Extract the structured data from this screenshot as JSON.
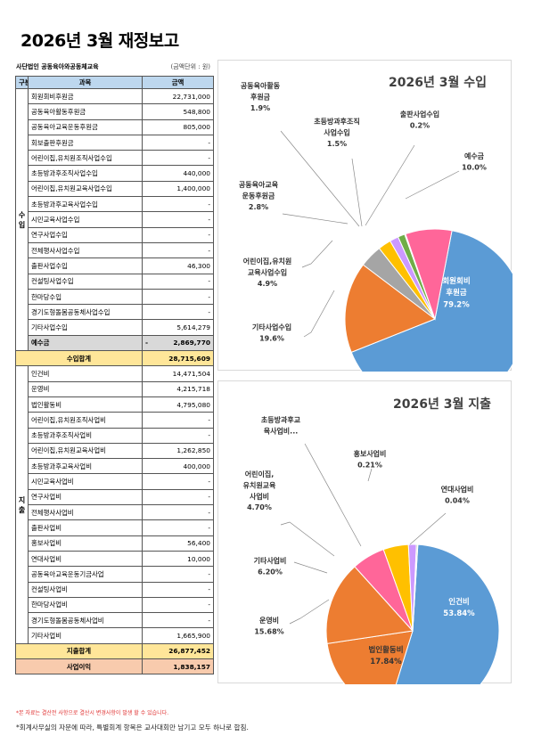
{
  "title": "2026년 3월 재정보고",
  "org": "사단법인 공동육아와공동체교육",
  "unit": "(금액단위 : 원)",
  "table": {
    "headers": [
      "구분",
      "과목",
      "금액"
    ],
    "income_label": "수입",
    "expense_label": "지출",
    "income_rows": [
      {
        "name": "회원회비후원금",
        "amount": "22,731,000"
      },
      {
        "name": "공동육아활동후원금",
        "amount": "548,800"
      },
      {
        "name": "공동육아교육운동후원금",
        "amount": "805,000"
      },
      {
        "name": "회보출판후원금",
        "amount": "-"
      },
      {
        "name": "어린이집,유치원조직사업수입",
        "amount": "-"
      },
      {
        "name": "초등방과후조직사업수입",
        "amount": "440,000"
      },
      {
        "name": "어린이집,유치원교육사업수입",
        "amount": "1,400,000"
      },
      {
        "name": "초등방과후교육사업수입",
        "amount": "-"
      },
      {
        "name": "시민교육사업수입",
        "amount": "-"
      },
      {
        "name": "연구사업수입",
        "amount": "-"
      },
      {
        "name": "전체행사사업수입",
        "amount": "-"
      },
      {
        "name": "출판사업수입",
        "amount": "46,300"
      },
      {
        "name": "컨설팅사업수입",
        "amount": "-"
      },
      {
        "name": "한마당수입",
        "amount": "-"
      },
      {
        "name": "경기도형돌봄공동체사업수입",
        "amount": "-"
      },
      {
        "name": "기타사업수입",
        "amount": "5,614,279"
      }
    ],
    "reserve": {
      "name": "예수금",
      "sign": "-",
      "amount": "2,869,770"
    },
    "income_total": {
      "name": "수입합계",
      "amount": "28,715,609"
    },
    "expense_rows": [
      {
        "name": "인건비",
        "amount": "14,471,504"
      },
      {
        "name": "운영비",
        "amount": "4,215,718"
      },
      {
        "name": "법인활동비",
        "amount": "4,795,080"
      },
      {
        "name": "어린이집,유치원조직사업비",
        "amount": "-"
      },
      {
        "name": "초등방과후조직사업비",
        "amount": "-"
      },
      {
        "name": "어린이집,유치원교육사업비",
        "amount": "1,262,850"
      },
      {
        "name": "초등방과후교육사업비",
        "amount": "400,000"
      },
      {
        "name": "시민교육사업비",
        "amount": "-"
      },
      {
        "name": "연구사업비",
        "amount": "-"
      },
      {
        "name": "전체행사사업비",
        "amount": "-"
      },
      {
        "name": "출판사업비",
        "amount": "-"
      },
      {
        "name": "홍보사업비",
        "amount": "56,400"
      },
      {
        "name": "연대사업비",
        "amount": "10,000"
      },
      {
        "name": "공동육아교육운동기금사업",
        "amount": "-"
      },
      {
        "name": "컨설팅사업비",
        "amount": "-"
      },
      {
        "name": "한마당사업비",
        "amount": "-"
      },
      {
        "name": "경기도형돌봄공동체사업비",
        "amount": "-"
      },
      {
        "name": "기타사업비",
        "amount": "1,665,900"
      }
    ],
    "expense_total": {
      "name": "지출합계",
      "amount": "26,877,452"
    },
    "profit": {
      "name": "사업이익",
      "amount": "1,838,157"
    }
  },
  "chart_data": [
    {
      "type": "pie",
      "title": "2026년 3월 수입",
      "slices": [
        {
          "label": "회원회비후원금",
          "value": 79.2,
          "display": "79.2%",
          "color": "#5b9bd5"
        },
        {
          "label": "기타사업수입",
          "value": 19.6,
          "display": "19.6%",
          "color": "#ed7d31"
        },
        {
          "label": "어린이집,유치원교육사업수입",
          "value": 4.9,
          "display": "4.9%",
          "color": "#a5a5a5"
        },
        {
          "label": "공동육아교육운동후원금",
          "value": 2.8,
          "display": "2.8%",
          "color": "#ffc000"
        },
        {
          "label": "공동육아활동후원금",
          "value": 1.9,
          "display": "1.9%",
          "color": "#cc99ff"
        },
        {
          "label": "초등방과후조직사업수입",
          "value": 1.5,
          "display": "1.5%",
          "color": "#70ad47"
        },
        {
          "label": "출판사업수입",
          "value": 0.2,
          "display": "0.2%",
          "color": "#264478"
        },
        {
          "label": "예수금",
          "value": 10.0,
          "display": "10.0%",
          "color": "#ff6699"
        }
      ],
      "labels": {
        "main": [
          "회원회비",
          "후원금",
          "79.2%"
        ],
        "other": [
          "기타사업수입",
          "19.6%"
        ],
        "daycare": [
          "어린이집,유치원",
          "교육사업수입",
          "4.9%"
        ],
        "edu": [
          "공동육아교육",
          "운동후원금",
          "2.8%"
        ],
        "activity": [
          "공동육아활동",
          "후원금",
          "1.9%"
        ],
        "after": [
          "초등방과후조직",
          "사업수입",
          "1.5%"
        ],
        "publish": [
          "출판사업수입",
          "0.2%"
        ],
        "reserve": [
          "예수금",
          "10.0%"
        ]
      }
    },
    {
      "type": "pie",
      "title": "2026년 3월 지출",
      "slices": [
        {
          "label": "인건비",
          "value": 53.84,
          "display": "53.84%",
          "color": "#5b9bd5"
        },
        {
          "label": "법인활동비",
          "value": 17.84,
          "display": "17.84%",
          "color": "#ed7d31"
        },
        {
          "label": "운영비",
          "value": 15.68,
          "display": "15.68%",
          "color": "#ff6699"
        },
        {
          "label": "기타사업비",
          "value": 6.2,
          "display": "6.20%",
          "color": "#ffffff"
        },
        {
          "label": "어린이집,유치원교육사업비",
          "value": 4.7,
          "display": "4.70%",
          "color": "#ffc000"
        },
        {
          "label": "초등방과후교육사업비",
          "value": 1.49,
          "display": "",
          "color": "#cc99ff"
        },
        {
          "label": "홍보사업비",
          "value": 0.21,
          "display": "0.21%",
          "color": "#70ad47"
        },
        {
          "label": "연대사업비",
          "value": 0.04,
          "display": "0.04%",
          "color": "#264478"
        }
      ],
      "labels": {
        "main": [
          "인건비",
          "53.84%"
        ],
        "corp": [
          "법인활동비",
          "17.84%"
        ],
        "ops": [
          "운영비",
          "15.68%"
        ],
        "other": [
          "기타사업비",
          "6.20%"
        ],
        "daycare": [
          "어린이집,",
          "유치원교육",
          "사업비",
          "4.70%"
        ],
        "after": [
          "초등방과후교",
          "육사업비..."
        ],
        "promo": [
          "홍보사업비",
          "0.21%"
        ],
        "solidarity": [
          "연대사업비",
          "0.04%"
        ]
      }
    }
  ],
  "notes": [
    "*본 자료는 결산전 사항으로 결산시 변경사항이 발생 할 수 있습니다.",
    "*회계사무실의 자문에 따라, 특별회계 항목은 교사대회만 남기고 모두 하나로 합침."
  ]
}
